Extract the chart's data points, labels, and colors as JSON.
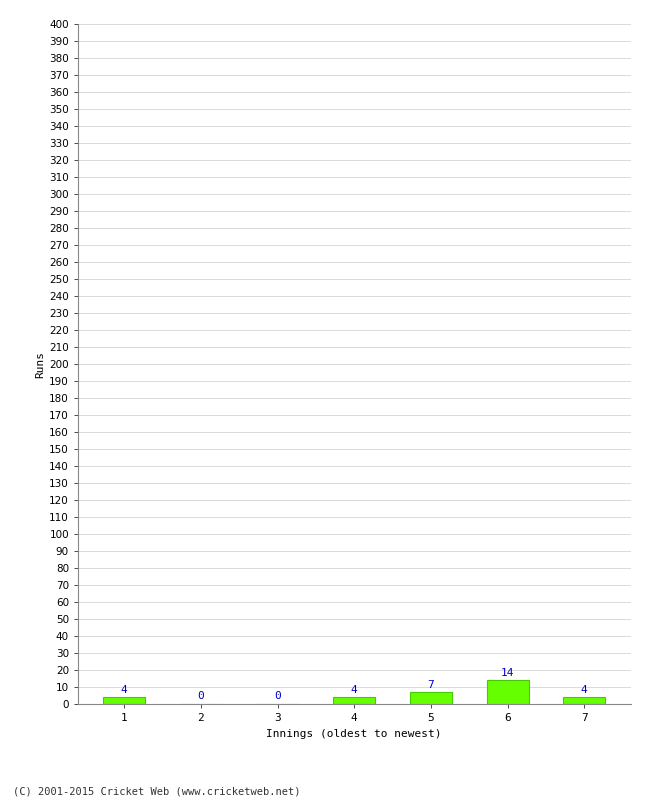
{
  "xlabel": "Innings (oldest to newest)",
  "ylabel": "Runs",
  "categories": [
    1,
    2,
    3,
    4,
    5,
    6,
    7
  ],
  "values": [
    4,
    0,
    0,
    4,
    7,
    14,
    4
  ],
  "bar_color": "#66ff00",
  "bar_edge_color": "#44cc00",
  "label_color": "#0000cc",
  "ylim": [
    0,
    400
  ],
  "background_color": "#ffffff",
  "grid_color": "#cccccc",
  "footer": "(C) 2001-2015 Cricket Web (www.cricketweb.net)"
}
